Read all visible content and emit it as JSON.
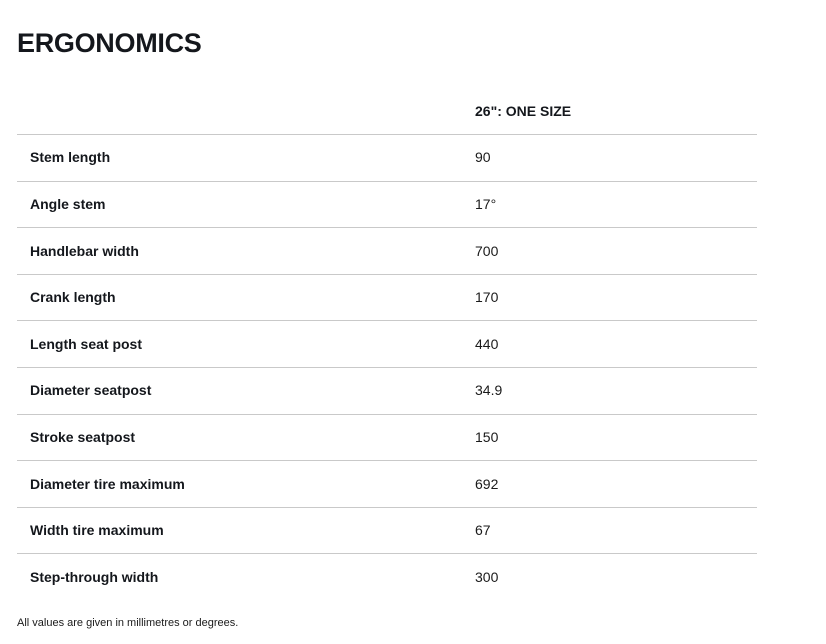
{
  "page": {
    "title": "ERGONOMICS",
    "footnote": "All values are given in millimetres or degrees."
  },
  "table": {
    "column_header": "26\": ONE SIZE",
    "rows": [
      {
        "label": "Stem length",
        "value": "90"
      },
      {
        "label": "Angle stem",
        "value": "17°"
      },
      {
        "label": "Handlebar width",
        "value": "700"
      },
      {
        "label": "Crank length",
        "value": "170"
      },
      {
        "label": "Length seat post",
        "value": "440"
      },
      {
        "label": "Diameter seatpost",
        "value": "34.9"
      },
      {
        "label": "Stroke seatpost",
        "value": "150"
      },
      {
        "label": "Diameter tire maximum",
        "value": "692"
      },
      {
        "label": "Width tire maximum",
        "value": "67"
      },
      {
        "label": "Step-through width",
        "value": "300"
      }
    ]
  },
  "colors": {
    "text": "#1a1a1a",
    "divider": "#c9c9c9",
    "background": "#ffffff"
  }
}
